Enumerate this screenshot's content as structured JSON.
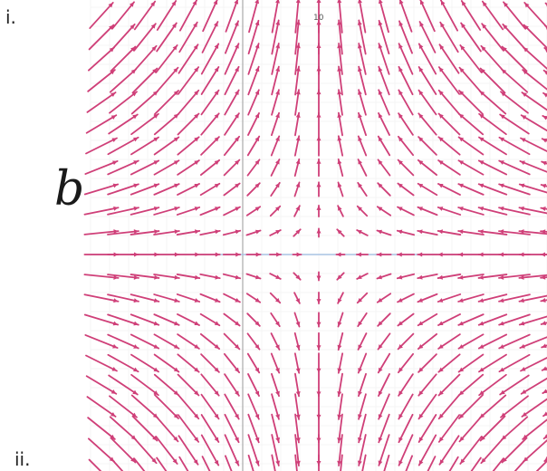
{
  "labels": {
    "part_i": "i.",
    "letter": "b",
    "part_ii": "ii.",
    "axis_note": "10"
  }
}
